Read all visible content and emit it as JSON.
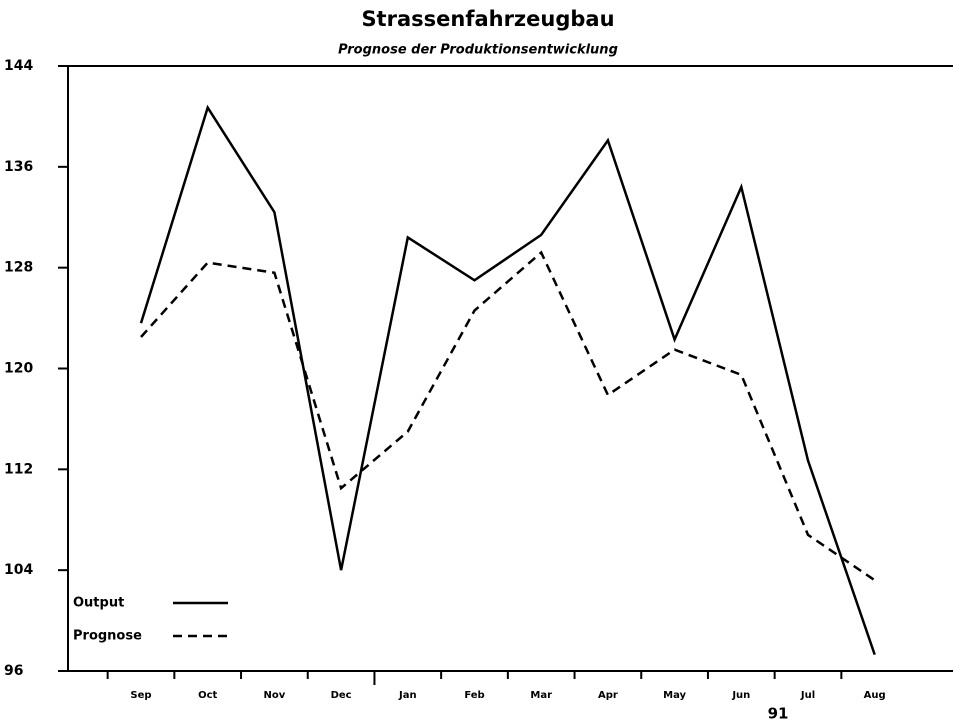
{
  "chart_data": {
    "type": "line",
    "title": "Strassenfahrzeugbau",
    "subtitle": "Prognose der Produktionsentwicklung",
    "categories": [
      "Sep",
      "Oct",
      "Nov",
      "Dec",
      "Jan",
      "Feb",
      "Mar",
      "Apr",
      "May",
      "Jun",
      "Jul",
      "Aug"
    ],
    "series": [
      {
        "name": "Output",
        "color": "#000000",
        "dash": "solid",
        "values": [
          123.6,
          140.7,
          132.4,
          104,
          130.4,
          127,
          130.6,
          138.1,
          122.3,
          134.4,
          112.7,
          97.3
        ]
      },
      {
        "name": "Prognose",
        "color": "#000000",
        "dash": "dashed",
        "values": [
          122.5,
          128.4,
          127.6,
          110.5,
          115,
          124.6,
          129.2,
          117.9,
          121.5,
          119.5,
          106.8,
          103.2
        ]
      }
    ],
    "annotations": [
      "91"
    ],
    "ylim": [
      96,
      144
    ],
    "yticks": [
      96,
      104,
      112,
      120,
      128,
      136,
      144
    ],
    "grid": false,
    "legend": "lower left"
  }
}
